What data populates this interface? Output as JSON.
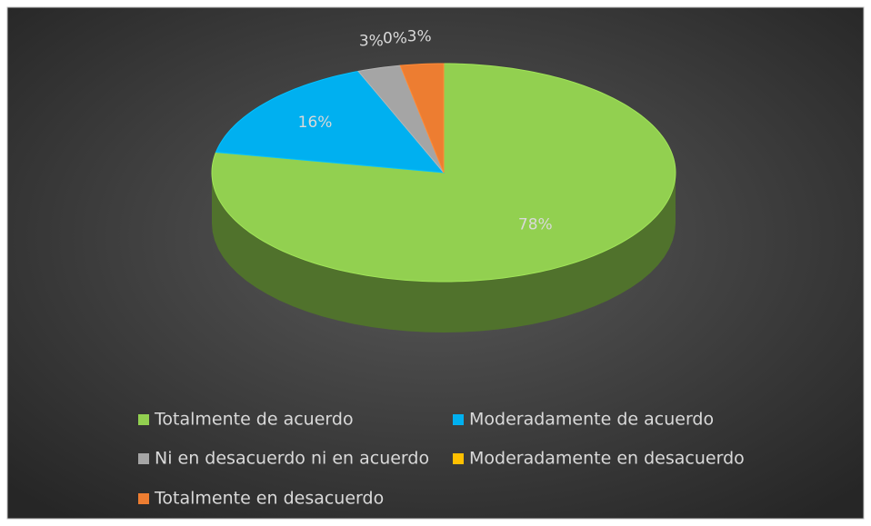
{
  "chart_data": {
    "type": "pie",
    "three_d": true,
    "categories": [
      "Totalmente de acuerdo",
      "Moderadamente de acuerdo",
      "Ni en desacuerdo ni en acuerdo",
      "Moderadamente en desacuerdo",
      "Totalmente en desacuerdo"
    ],
    "values": [
      78,
      16,
      3,
      0,
      3
    ],
    "value_labels": [
      "78%",
      "16%",
      "3%",
      "0%",
      "3%"
    ],
    "colors": [
      "#92d050",
      "#00b0f0",
      "#a5a5a5",
      "#ffc000",
      "#ed7d31"
    ],
    "legend": "bottom"
  }
}
